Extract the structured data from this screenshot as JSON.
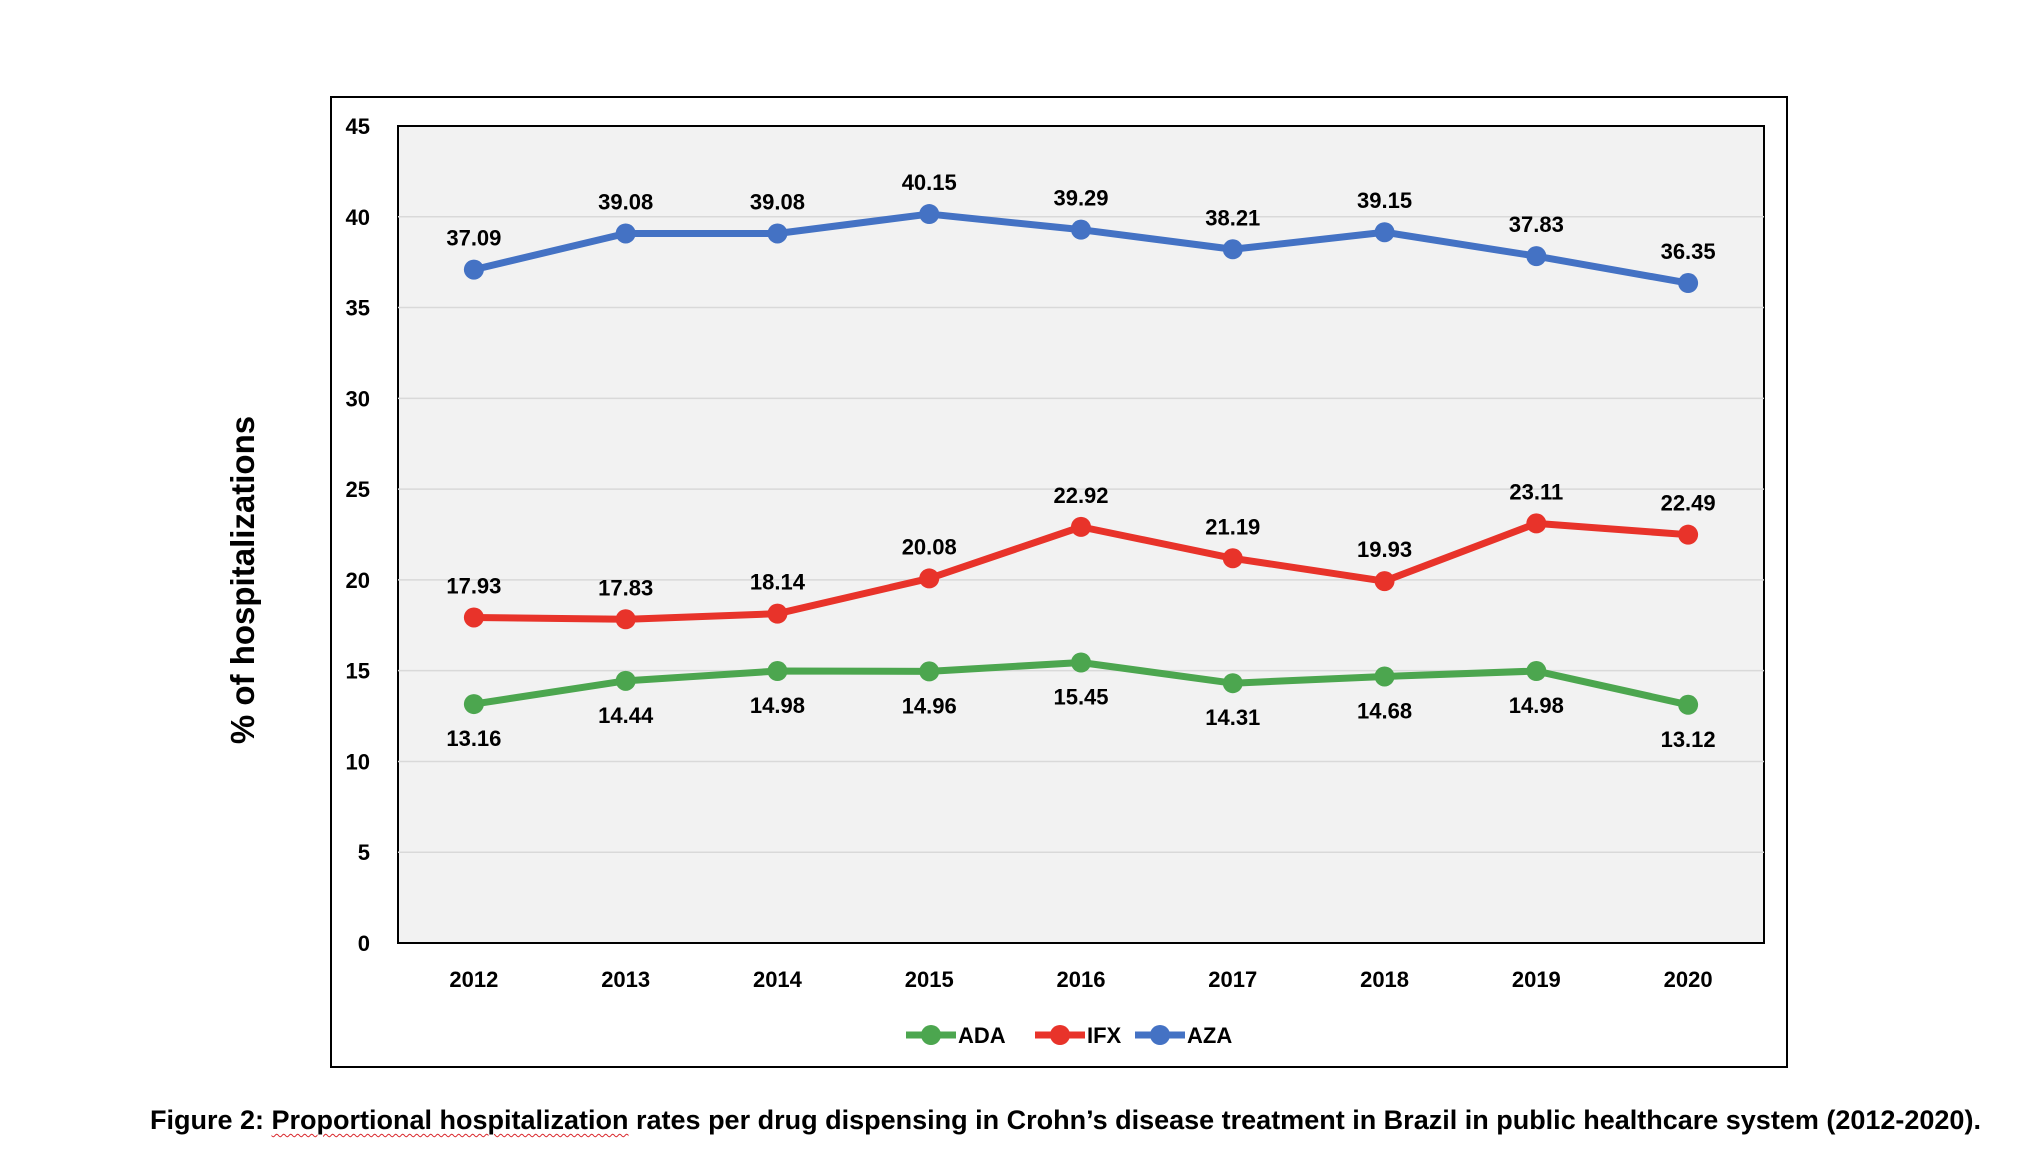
{
  "colors": {
    "ADA": "#4ca64f",
    "IFX": "#e8332a",
    "AZA": "#4472c4",
    "plot_bg": "#f2f2f2",
    "grid": "#d9d9d9"
  },
  "caption": {
    "prefix": "Figure 2: ",
    "underlined": "Proportional hospitalization",
    "suffix": " rates per drug dispensing  in Crohn’s disease treatment in Brazil in public healthcare system (2012-2020)."
  },
  "chart_data": {
    "type": "line",
    "title": "",
    "xlabel": "",
    "ylabel": "% of hospitalizations",
    "ylim": [
      0,
      45
    ],
    "yticks": [
      "0",
      "5",
      "10",
      "15",
      "20",
      "25",
      "30",
      "35",
      "40",
      "45"
    ],
    "grid": true,
    "legend_position": "bottom",
    "categories": [
      "2012",
      "2013",
      "2014",
      "2015",
      "2016",
      "2017",
      "2018",
      "2019",
      "2020"
    ],
    "series": [
      {
        "name": "ADA",
        "values": [
          13.16,
          14.44,
          14.98,
          14.96,
          15.45,
          14.31,
          14.68,
          14.98,
          13.12
        ],
        "labels": [
          "13.16",
          "14.44",
          "14.98",
          "14.96",
          "15.45",
          "14.31",
          "14.68",
          "14.98",
          "13.12"
        ],
        "label_position": "below"
      },
      {
        "name": "IFX",
        "values": [
          17.93,
          17.83,
          18.14,
          20.08,
          22.92,
          21.19,
          19.93,
          23.11,
          22.49
        ],
        "labels": [
          "17.93",
          "17.83",
          "18.14",
          "20.08",
          "22.92",
          "21.19",
          "19.93",
          "23.11",
          "22.49"
        ],
        "label_position": "above"
      },
      {
        "name": "AZA",
        "values": [
          37.09,
          39.08,
          39.08,
          40.15,
          39.29,
          38.21,
          39.15,
          37.83,
          36.35
        ],
        "labels": [
          "37.09",
          "39.08",
          "39.08",
          "40.15",
          "39.29",
          "38.21",
          "39.15",
          "37.83",
          "36.35"
        ],
        "label_position": "above"
      }
    ]
  }
}
